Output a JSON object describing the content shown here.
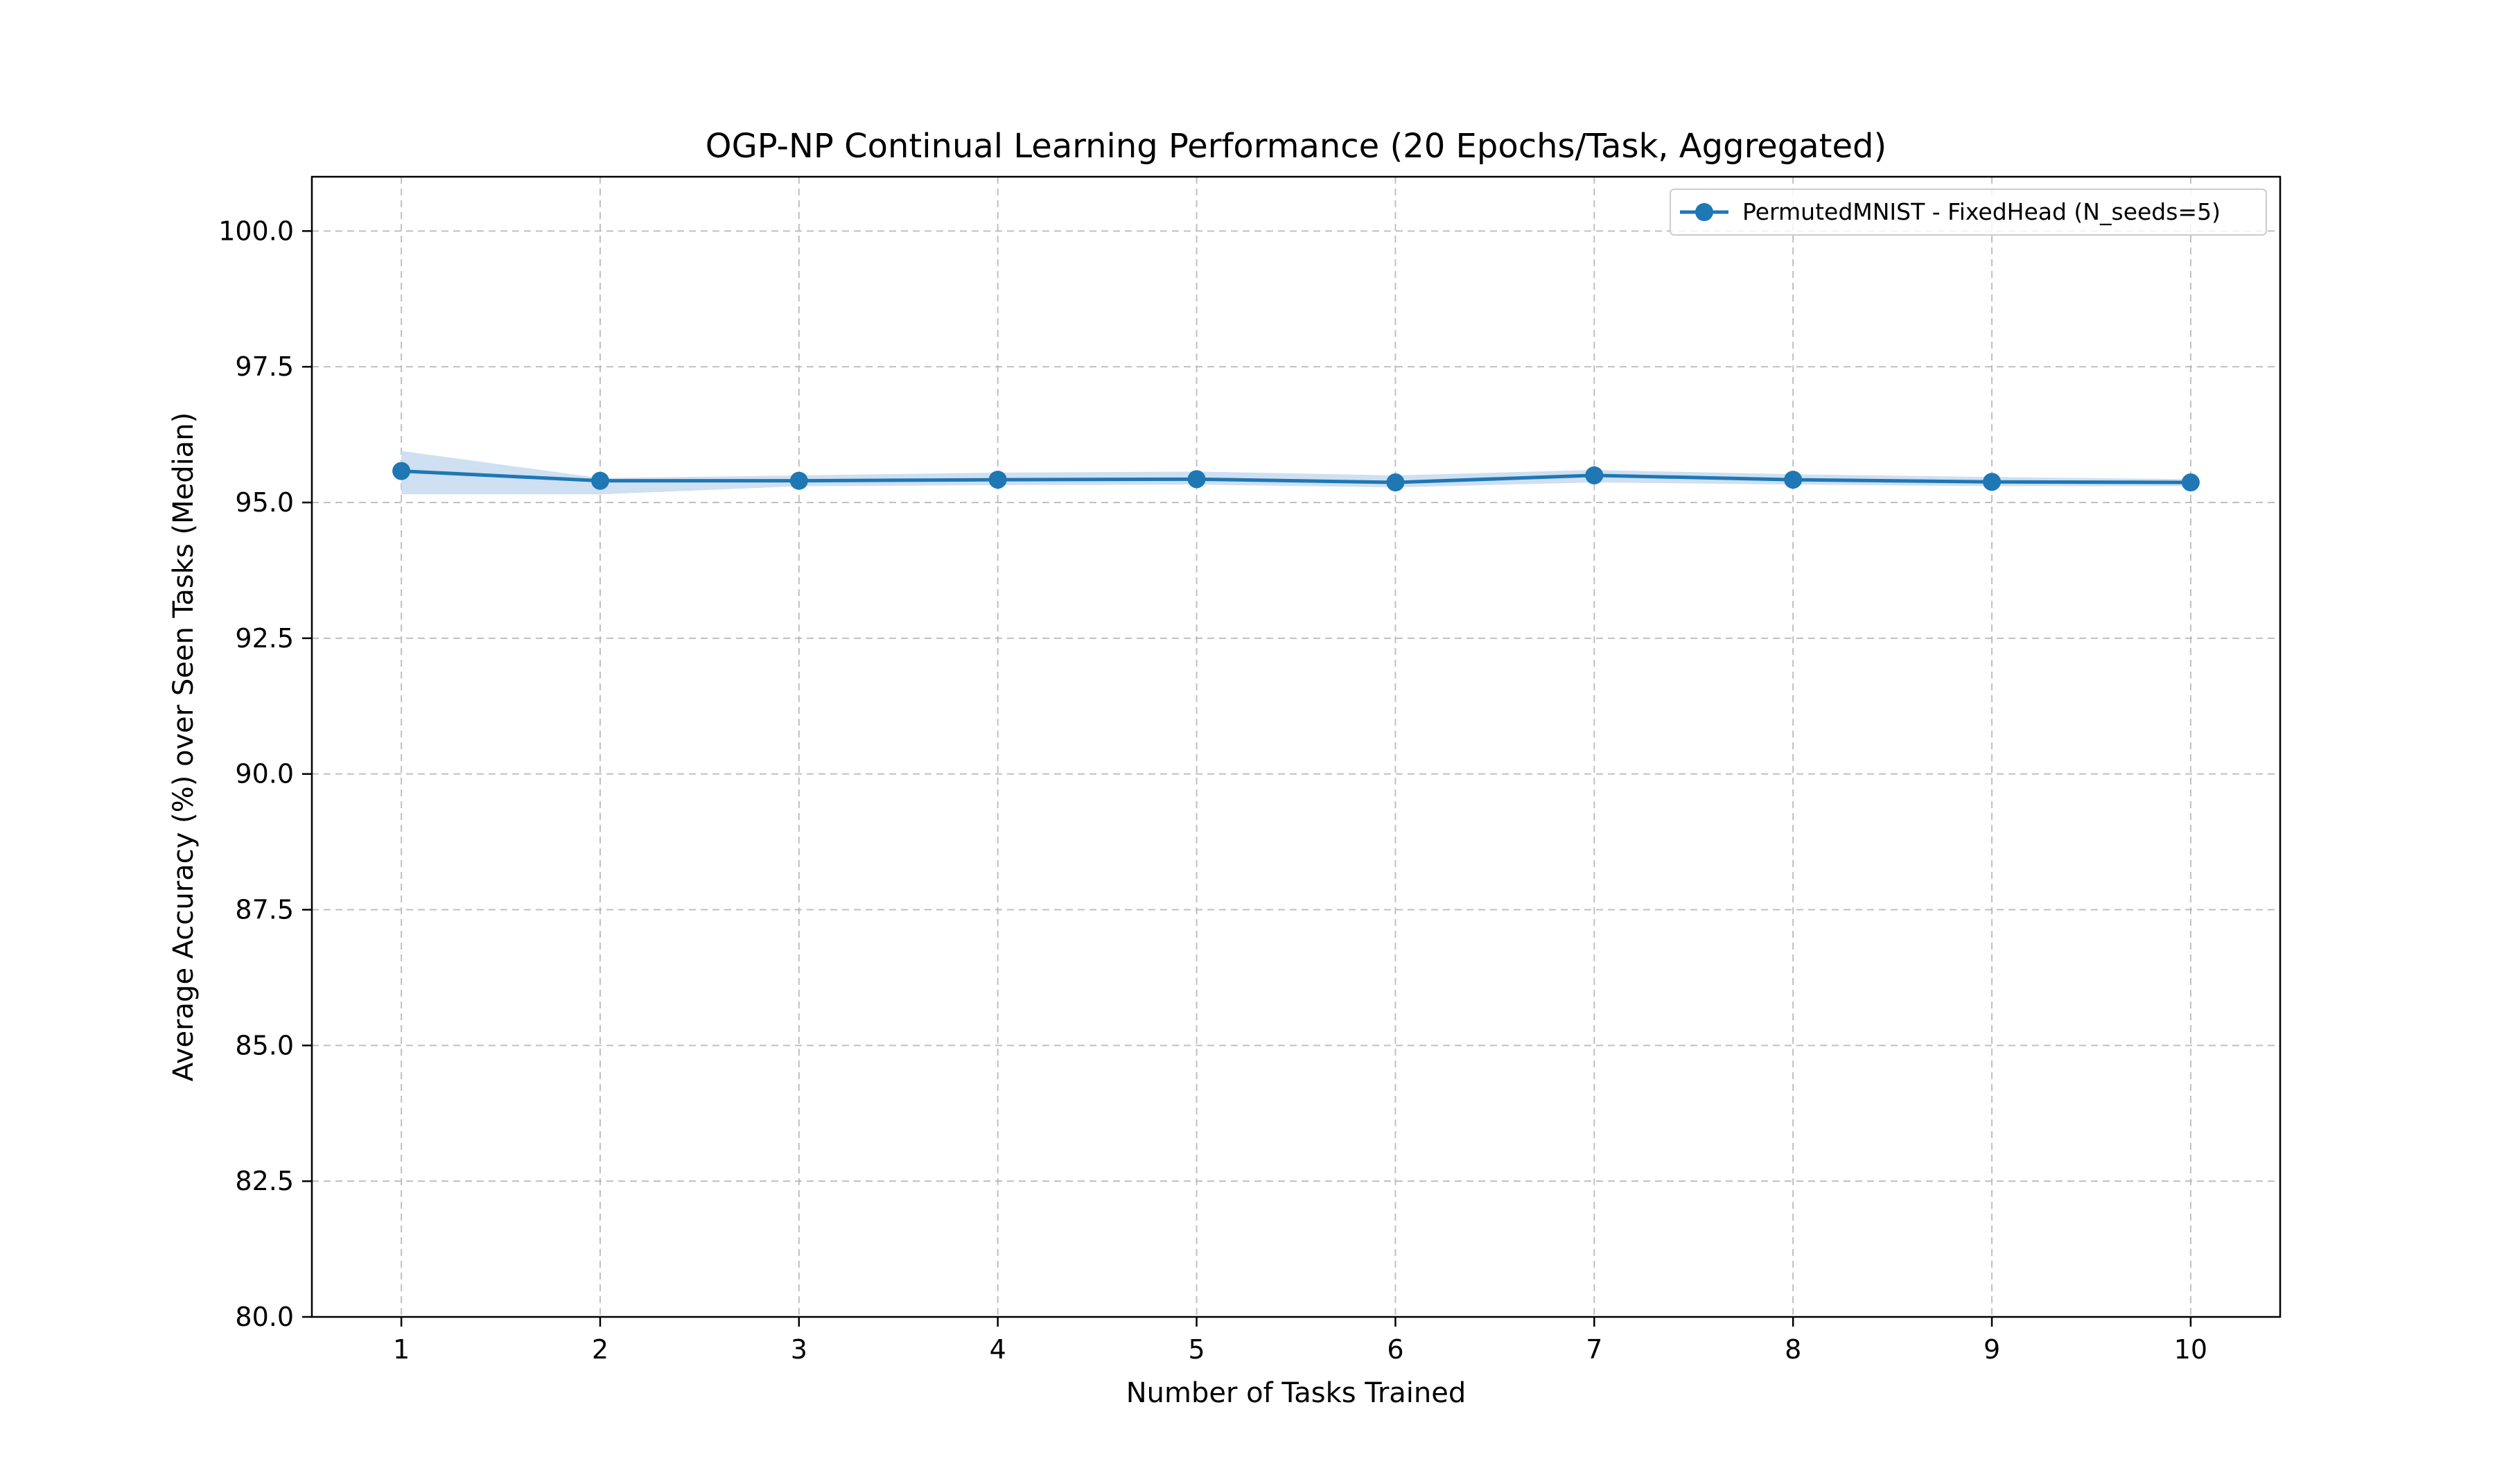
{
  "chart_data": {
    "type": "line",
    "title": "OGP-NP Continual Learning Performance (20 Epochs/Task, Aggregated)",
    "xlabel": "Number of Tasks Trained",
    "ylabel": "Average Accuracy (%) over Seen Tasks (Median)",
    "xlim": [
      0.55,
      10.45
    ],
    "ylim": [
      80.0,
      101.0
    ],
    "x_ticks": [
      1,
      2,
      3,
      4,
      5,
      6,
      7,
      8,
      9,
      10
    ],
    "x_tick_labels": [
      "1",
      "2",
      "3",
      "4",
      "5",
      "6",
      "7",
      "8",
      "9",
      "10"
    ],
    "y_ticks": [
      80.0,
      82.5,
      85.0,
      87.5,
      90.0,
      92.5,
      95.0,
      97.5,
      100.0
    ],
    "y_tick_labels": [
      "80.0",
      "82.5",
      "85.0",
      "87.5",
      "90.0",
      "92.5",
      "95.0",
      "97.5",
      "100.0"
    ],
    "grid": true,
    "legend_position": "top-right",
    "series": [
      {
        "name": "PermutedMNIST - FixedHead (N_seeds=5)",
        "color": "#1f77b4",
        "band_color": "#c6dbef",
        "marker": "circle",
        "x": [
          1,
          2,
          3,
          4,
          5,
          6,
          7,
          8,
          9,
          10
        ],
        "values": [
          95.58,
          95.4,
          95.4,
          95.42,
          95.43,
          95.37,
          95.5,
          95.42,
          95.38,
          95.37
        ],
        "lower": [
          95.15,
          95.15,
          95.3,
          95.32,
          95.33,
          95.28,
          95.37,
          95.33,
          95.3,
          95.3
        ],
        "upper": [
          95.95,
          95.45,
          95.5,
          95.55,
          95.57,
          95.5,
          95.6,
          95.52,
          95.47,
          95.43
        ]
      }
    ]
  }
}
